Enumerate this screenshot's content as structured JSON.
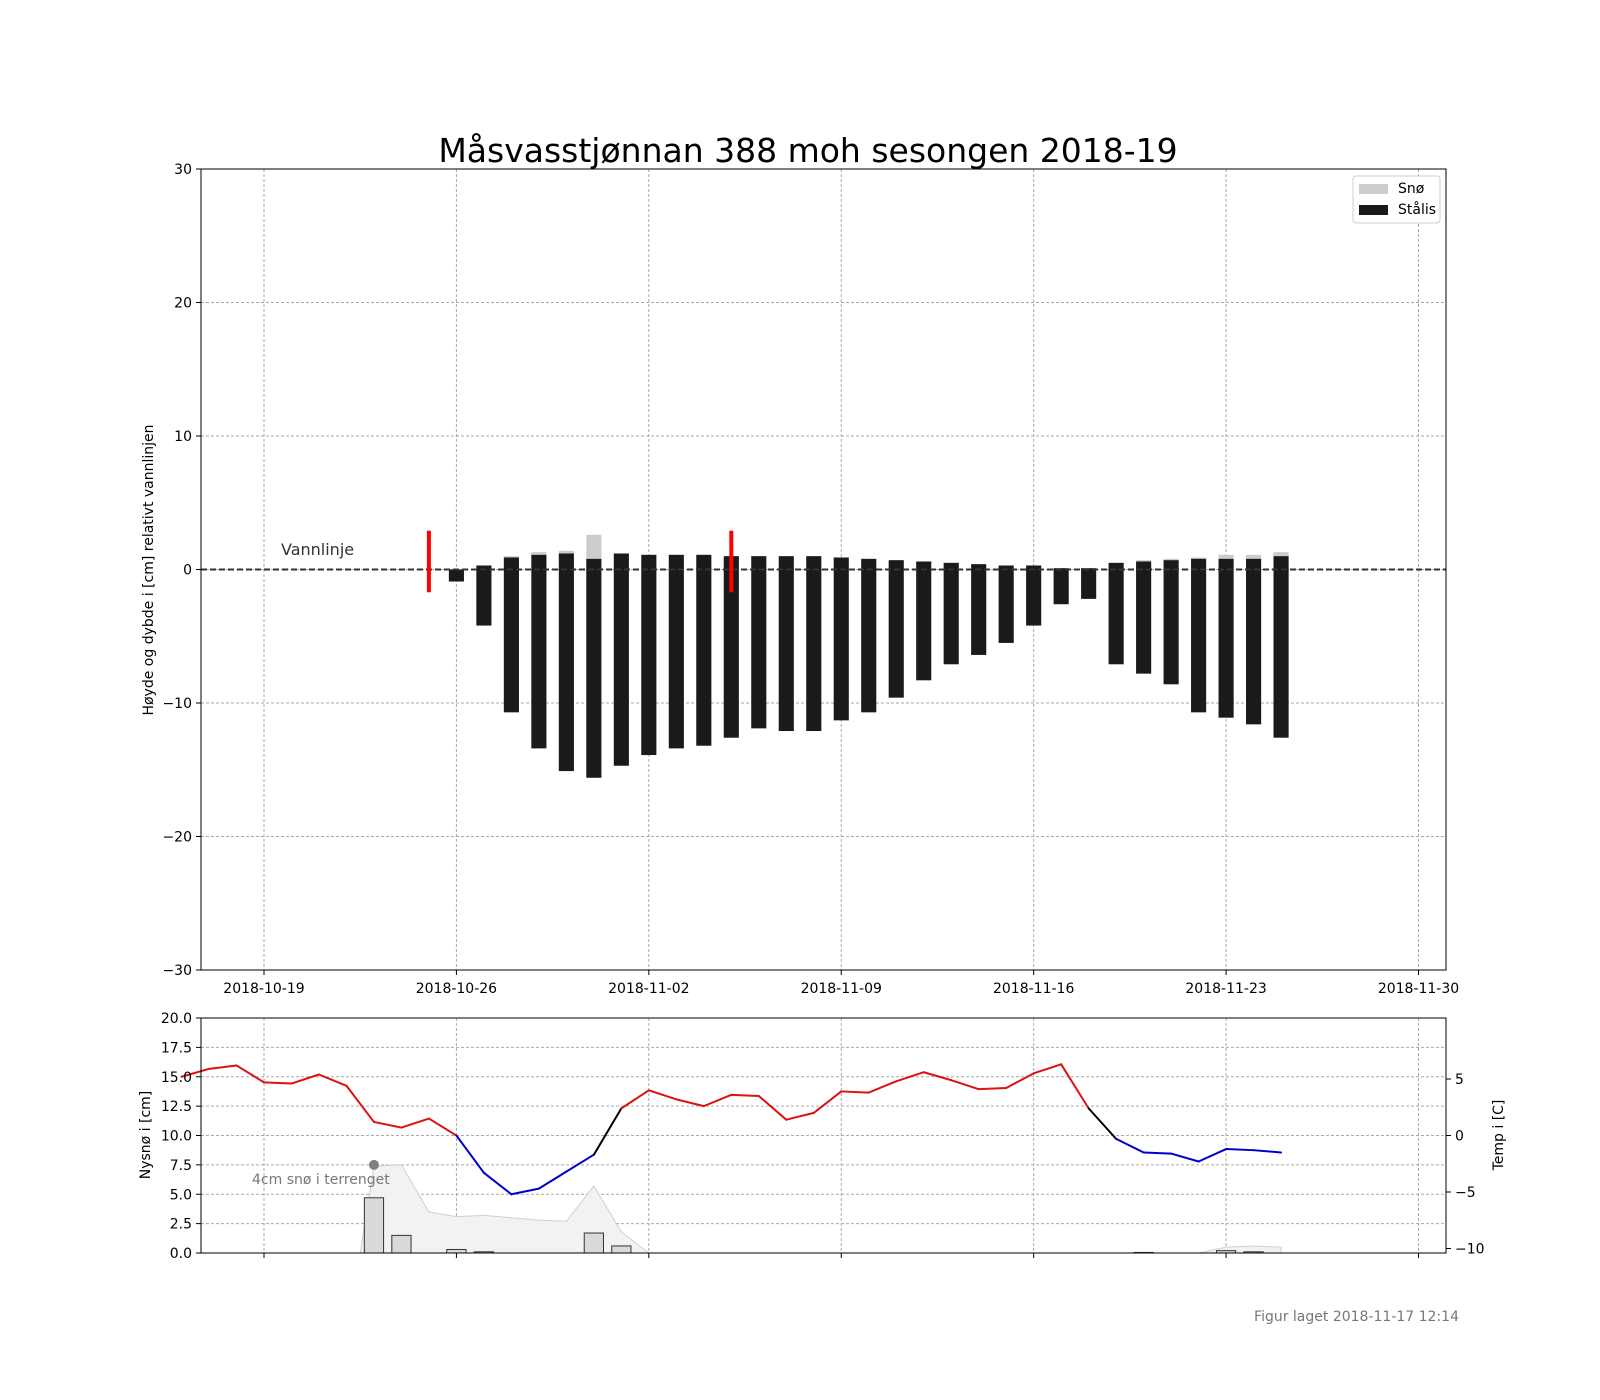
{
  "footer": "Figur laget 2018-11-17 12:14",
  "colors": {
    "snow": "#cccccc",
    "ice": "#1a1a1a",
    "temp_warm": "#dd1111",
    "temp_transition": "#000000",
    "temp_cold": "#0000cc",
    "marker": "#ff0000",
    "terrain_snow": "#f2f2f2",
    "new_snow_bar": "#d9d9d9"
  },
  "chart_data": [
    {
      "type": "bar",
      "title": "Måsvasstjønnan 388 moh sesongen 2018-19",
      "ylabel": "Høyde og dybde i [cm] relativt vannlinjen",
      "xlabel": "",
      "ylim": [
        -30,
        30
      ],
      "yticks": [
        30,
        20,
        10,
        0,
        -10,
        -20,
        -30
      ],
      "yticklabels": [
        "30",
        "20",
        "10",
        "0",
        "−10",
        "−20",
        "−30"
      ],
      "xlim": [
        "2018-10-16T17:00",
        "2018-12-01T00:00"
      ],
      "xticks": [
        "2018-10-19",
        "2018-10-26",
        "2018-11-02",
        "2018-11-09",
        "2018-11-16",
        "2018-11-23",
        "2018-11-30"
      ],
      "grid": true,
      "waterline_label": "Vannlinje",
      "legend": {
        "placement": "top-right",
        "entries": [
          "Snø",
          "Stålis"
        ]
      },
      "markers": [
        "2018-10-25",
        "2018-11-05"
      ],
      "marker_range": [
        -1.7,
        2.9
      ],
      "dates": [
        "2018-10-26",
        "2018-10-27",
        "2018-10-28",
        "2018-10-29",
        "2018-10-30",
        "2018-10-31",
        "2018-11-01",
        "2018-11-02",
        "2018-11-03",
        "2018-11-04",
        "2018-11-05",
        "2018-11-06",
        "2018-11-07",
        "2018-11-08",
        "2018-11-09",
        "2018-11-10",
        "2018-11-11",
        "2018-11-12",
        "2018-11-13",
        "2018-11-14",
        "2018-11-15",
        "2018-11-16",
        "2018-11-17",
        "2018-11-18",
        "2018-11-19",
        "2018-11-20",
        "2018-11-21",
        "2018-11-22",
        "2018-11-23",
        "2018-11-24",
        "2018-11-25"
      ],
      "series": [
        {
          "name": "Stålis",
          "top": [
            0.0,
            0.3,
            0.9,
            1.1,
            1.2,
            0.8,
            1.2,
            1.1,
            1.1,
            1.1,
            1.0,
            1.0,
            1.0,
            1.0,
            0.9,
            0.8,
            0.7,
            0.6,
            0.5,
            0.4,
            0.3,
            0.3,
            0.1,
            0.1,
            0.5,
            0.6,
            0.7,
            0.8,
            0.8,
            0.8,
            1.0
          ],
          "bottom": [
            -0.9,
            -4.2,
            -10.7,
            -13.4,
            -15.1,
            -15.6,
            -14.7,
            -13.9,
            -13.4,
            -13.2,
            -12.6,
            -11.9,
            -12.1,
            -12.1,
            -11.3,
            -10.7,
            -9.6,
            -8.3,
            -7.1,
            -6.4,
            -5.5,
            -4.2,
            -2.6,
            -2.2,
            -7.1,
            -7.8,
            -8.6,
            -10.7,
            -11.1,
            -11.6,
            -12.6
          ]
        },
        {
          "name": "Snø",
          "values": [
            0.0,
            0.0,
            0.1,
            0.2,
            0.2,
            1.8,
            0.0,
            0.0,
            0.0,
            0.0,
            0.0,
            0.0,
            0.0,
            0.0,
            0.0,
            0.0,
            0.0,
            0.0,
            0.0,
            0.0,
            0.0,
            0.0,
            0.0,
            0.0,
            0.0,
            0.1,
            0.1,
            0.1,
            0.3,
            0.3,
            0.3
          ]
        }
      ]
    },
    {
      "type": "bar",
      "ylabel": "Nysnø i [cm]",
      "y2label": "Temp i [C]",
      "ylim": [
        0,
        20
      ],
      "yticks": [
        20.0,
        17.5,
        15.0,
        12.5,
        10.0,
        7.5,
        5.0,
        2.5,
        0.0
      ],
      "yticklabels": [
        "20.0",
        "17.5",
        "15.0",
        "12.5",
        "10.0",
        "7.5",
        "5.0",
        "2.5",
        "0.0"
      ],
      "y2lim": [
        -10.4,
        10.4
      ],
      "y2ticks": [
        5,
        0,
        -5,
        -10
      ],
      "y2ticklabels": [
        "5",
        "0",
        "−5",
        "−10"
      ],
      "grid": true,
      "annotation": "4cm snø i terrenget",
      "annotation_point": {
        "date": "2018-10-23",
        "value": 7.5
      },
      "new_snow": {
        "dates": [
          "2018-10-23",
          "2018-10-24",
          "2018-10-26",
          "2018-10-27",
          "2018-10-31",
          "2018-11-01",
          "2018-11-20",
          "2018-11-23",
          "2018-11-24"
        ],
        "values": [
          4.7,
          1.5,
          0.3,
          0.1,
          1.7,
          0.6,
          0.05,
          0.2,
          0.1
        ]
      },
      "terrain_snow": {
        "dates": [
          "2018-10-22T12:00",
          "2018-10-23",
          "2018-10-24",
          "2018-10-25",
          "2018-10-26",
          "2018-10-27",
          "2018-10-28",
          "2018-10-29",
          "2018-10-30",
          "2018-10-31",
          "2018-11-01",
          "2018-11-02",
          "2018-11-21",
          "2018-11-22",
          "2018-11-23",
          "2018-11-24",
          "2018-11-25"
        ],
        "values": [
          0.0,
          7.4,
          7.5,
          3.5,
          3.1,
          3.2,
          3.0,
          2.8,
          2.7,
          5.7,
          1.8,
          0.0,
          0.0,
          0.0,
          0.5,
          0.6,
          0.5
        ]
      },
      "temperature": {
        "dates": [
          "2018-10-16",
          "2018-10-17",
          "2018-10-18",
          "2018-10-19",
          "2018-10-20",
          "2018-10-21",
          "2018-10-22",
          "2018-10-23",
          "2018-10-24",
          "2018-10-25",
          "2018-10-26",
          "2018-10-27",
          "2018-10-28",
          "2018-10-29",
          "2018-10-30",
          "2018-10-31",
          "2018-11-01",
          "2018-11-02",
          "2018-11-03",
          "2018-11-04",
          "2018-11-05",
          "2018-11-06",
          "2018-11-07",
          "2018-11-08",
          "2018-11-09",
          "2018-11-10",
          "2018-11-11",
          "2018-11-12",
          "2018-11-13",
          "2018-11-14",
          "2018-11-15",
          "2018-11-16",
          "2018-11-17",
          "2018-11-18",
          "2018-11-19",
          "2018-11-20",
          "2018-11-21",
          "2018-11-22",
          "2018-11-23",
          "2018-11-24",
          "2018-11-25"
        ],
        "values": [
          5.2,
          5.9,
          6.2,
          4.7,
          4.6,
          5.4,
          4.4,
          1.2,
          0.7,
          1.5,
          0.0,
          -3.3,
          -5.2,
          -4.7,
          -3.2,
          -1.7,
          2.4,
          4.0,
          3.2,
          2.6,
          3.6,
          3.5,
          1.4,
          2.0,
          3.9,
          3.8,
          4.8,
          5.6,
          4.9,
          4.1,
          4.2,
          5.5,
          6.3,
          2.4,
          -0.3,
          -1.5,
          -1.6,
          -2.3,
          -1.2,
          -1.3,
          -1.5
        ]
      }
    }
  ]
}
